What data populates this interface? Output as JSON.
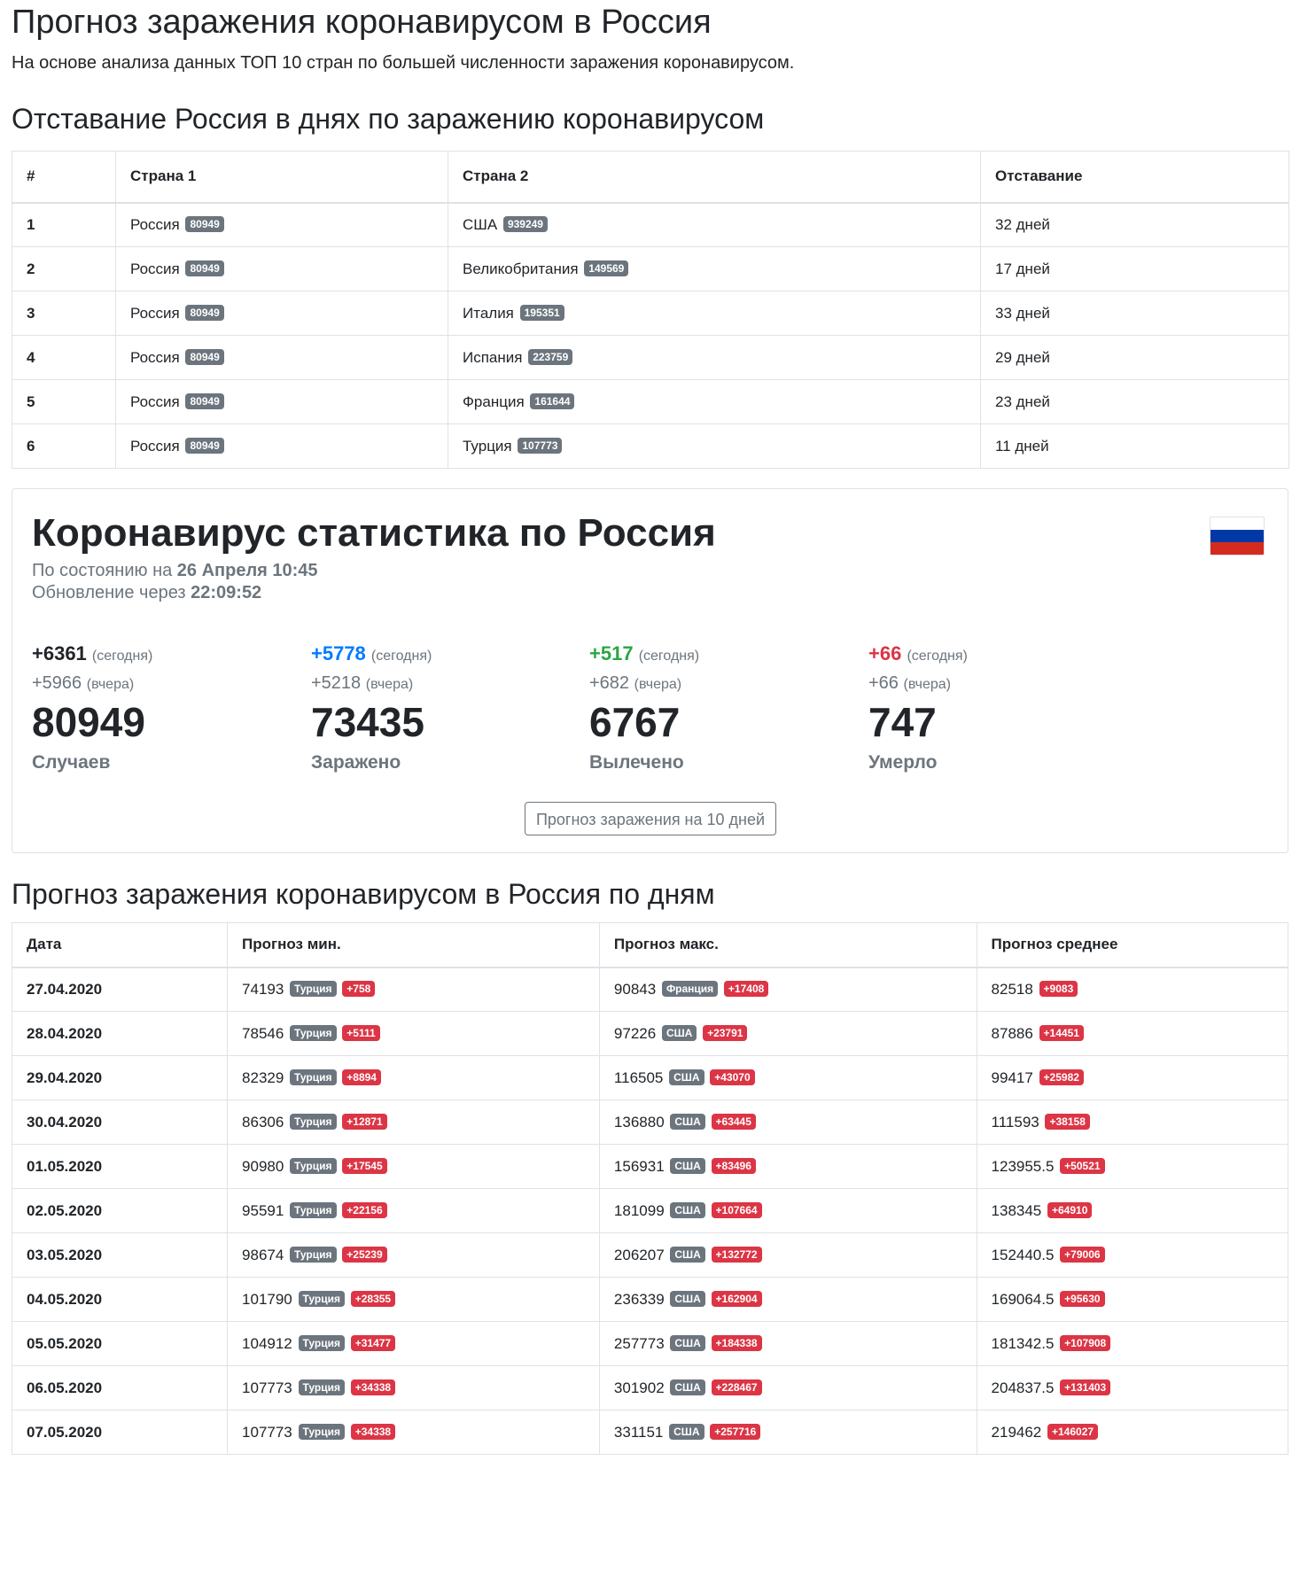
{
  "header": {
    "title": "Прогноз заражения коронавирусом в Россия",
    "lead": "На основе анализа данных ТОП 10 стран по большей численности заражения коронавирусом."
  },
  "lag_section": {
    "title": "Отставание Россия в днях по заражению коронавирусом",
    "columns": [
      "#",
      "Страна 1",
      "Страна 2",
      "Отставание"
    ],
    "rows": [
      {
        "n": "1",
        "c1": "Россия",
        "c1_badge": "80949",
        "c2": "США",
        "c2_badge": "939249",
        "lag": "32 дней"
      },
      {
        "n": "2",
        "c1": "Россия",
        "c1_badge": "80949",
        "c2": "Великобритания",
        "c2_badge": "149569",
        "lag": "17 дней"
      },
      {
        "n": "3",
        "c1": "Россия",
        "c1_badge": "80949",
        "c2": "Италия",
        "c2_badge": "195351",
        "lag": "33 дней"
      },
      {
        "n": "4",
        "c1": "Россия",
        "c1_badge": "80949",
        "c2": "Испания",
        "c2_badge": "223759",
        "lag": "29 дней"
      },
      {
        "n": "5",
        "c1": "Россия",
        "c1_badge": "80949",
        "c2": "Франция",
        "c2_badge": "161644",
        "lag": "23 дней"
      },
      {
        "n": "6",
        "c1": "Россия",
        "c1_badge": "80949",
        "c2": "Турция",
        "c2_badge": "107773",
        "lag": "11 дней"
      }
    ]
  },
  "stats_card": {
    "title": "Коронавирус статистика по Россия",
    "status_prefix": "По состоянию на",
    "status_value": "26 Апреля 10:45",
    "update_prefix": "Обновление через",
    "update_value": "22:09:52",
    "flag_colors": [
      "#ffffff",
      "#0039a6",
      "#d52b1e"
    ],
    "today_suffix": "(сегодня)",
    "yesterday_suffix": "(вчера)",
    "items": [
      {
        "today": "+6361",
        "yesterday": "+5966",
        "total": "80949",
        "label": "Случаев",
        "color": "#212529"
      },
      {
        "today": "+5778",
        "yesterday": "+5218",
        "total": "73435",
        "label": "Заражено",
        "color": "#007bff"
      },
      {
        "today": "+517",
        "yesterday": "+682",
        "total": "6767",
        "label": "Вылечено",
        "color": "#28a745"
      },
      {
        "today": "+66",
        "yesterday": "+66",
        "total": "747",
        "label": "Умерло",
        "color": "#dc3545"
      }
    ],
    "button_label": "Прогноз заражения на 10 дней"
  },
  "forecast_section": {
    "title": "Прогноз заражения коронавирусом в Россия по дням",
    "columns": [
      "Дата",
      "Прогноз мин.",
      "Прогноз макс.",
      "Прогноз среднее"
    ],
    "rows": [
      {
        "date": "27.04.2020",
        "min": "74193",
        "min_country": "Турция",
        "min_delta": "+758",
        "max": "90843",
        "max_country": "Франция",
        "max_delta": "+17408",
        "avg": "82518",
        "avg_delta": "+9083"
      },
      {
        "date": "28.04.2020",
        "min": "78546",
        "min_country": "Турция",
        "min_delta": "+5111",
        "max": "97226",
        "max_country": "США",
        "max_delta": "+23791",
        "avg": "87886",
        "avg_delta": "+14451"
      },
      {
        "date": "29.04.2020",
        "min": "82329",
        "min_country": "Турция",
        "min_delta": "+8894",
        "max": "116505",
        "max_country": "США",
        "max_delta": "+43070",
        "avg": "99417",
        "avg_delta": "+25982"
      },
      {
        "date": "30.04.2020",
        "min": "86306",
        "min_country": "Турция",
        "min_delta": "+12871",
        "max": "136880",
        "max_country": "США",
        "max_delta": "+63445",
        "avg": "111593",
        "avg_delta": "+38158"
      },
      {
        "date": "01.05.2020",
        "min": "90980",
        "min_country": "Турция",
        "min_delta": "+17545",
        "max": "156931",
        "max_country": "США",
        "max_delta": "+83496",
        "avg": "123955.5",
        "avg_delta": "+50521"
      },
      {
        "date": "02.05.2020",
        "min": "95591",
        "min_country": "Турция",
        "min_delta": "+22156",
        "max": "181099",
        "max_country": "США",
        "max_delta": "+107664",
        "avg": "138345",
        "avg_delta": "+64910"
      },
      {
        "date": "03.05.2020",
        "min": "98674",
        "min_country": "Турция",
        "min_delta": "+25239",
        "max": "206207",
        "max_country": "США",
        "max_delta": "+132772",
        "avg": "152440.5",
        "avg_delta": "+79006"
      },
      {
        "date": "04.05.2020",
        "min": "101790",
        "min_country": "Турция",
        "min_delta": "+28355",
        "max": "236339",
        "max_country": "США",
        "max_delta": "+162904",
        "avg": "169064.5",
        "avg_delta": "+95630"
      },
      {
        "date": "05.05.2020",
        "min": "104912",
        "min_country": "Турция",
        "min_delta": "+31477",
        "max": "257773",
        "max_country": "США",
        "max_delta": "+184338",
        "avg": "181342.5",
        "avg_delta": "+107908"
      },
      {
        "date": "06.05.2020",
        "min": "107773",
        "min_country": "Турция",
        "min_delta": "+34338",
        "max": "301902",
        "max_country": "США",
        "max_delta": "+228467",
        "avg": "204837.5",
        "avg_delta": "+131403"
      },
      {
        "date": "07.05.2020",
        "min": "107773",
        "min_country": "Турция",
        "min_delta": "+34338",
        "max": "331151",
        "max_country": "США",
        "max_delta": "+257716",
        "avg": "219462",
        "avg_delta": "+146027"
      }
    ]
  }
}
